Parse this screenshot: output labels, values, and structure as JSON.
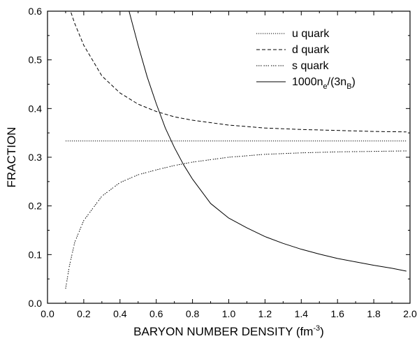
{
  "chart_data": {
    "type": "line",
    "title": "",
    "xlabel": "BARYON NUMBER DENSITY (fm",
    "xlabel_sup": "-3",
    "xlabel_close": ")",
    "ylabel": "FRACTION",
    "xlim": [
      0.0,
      2.0
    ],
    "ylim": [
      0.0,
      0.6
    ],
    "xticks": [
      "0.0",
      "0.2",
      "0.4",
      "0.6",
      "0.8",
      "1.0",
      "1.2",
      "1.4",
      "1.6",
      "1.8",
      "2.0"
    ],
    "yticks": [
      "0.0",
      "0.1",
      "0.2",
      "0.3",
      "0.4",
      "0.5",
      "0.6"
    ],
    "legend_position": "top-right",
    "grid": false,
    "series": [
      {
        "name": "u quark",
        "style": "dotted",
        "x": [
          0.1,
          0.3,
          0.5,
          0.7,
          0.9,
          1.1,
          1.3,
          1.5,
          1.7,
          1.98
        ],
        "y": [
          0.3333,
          0.3333,
          0.3333,
          0.3333,
          0.3333,
          0.3333,
          0.3333,
          0.3333,
          0.3333,
          0.3333
        ]
      },
      {
        "name": "d quark",
        "style": "dashed",
        "x": [
          0.1,
          0.15,
          0.2,
          0.3,
          0.4,
          0.5,
          0.6,
          0.7,
          0.8,
          1.0,
          1.2,
          1.4,
          1.6,
          1.8,
          1.98
        ],
        "y": [
          0.63,
          0.575,
          0.53,
          0.467,
          0.432,
          0.409,
          0.394,
          0.383,
          0.376,
          0.366,
          0.36,
          0.357,
          0.355,
          0.353,
          0.352
        ]
      },
      {
        "name": "s quark",
        "style": "dashdot",
        "x": [
          0.1,
          0.12,
          0.15,
          0.2,
          0.3,
          0.4,
          0.5,
          0.6,
          0.7,
          0.8,
          1.0,
          1.2,
          1.4,
          1.6,
          1.8,
          1.98
        ],
        "y": [
          0.03,
          0.075,
          0.125,
          0.17,
          0.22,
          0.248,
          0.264,
          0.274,
          0.283,
          0.29,
          0.3,
          0.306,
          0.309,
          0.311,
          0.312,
          0.313
        ]
      },
      {
        "name": "1000n",
        "name_sub1": "e",
        "name_mid": "/(3n",
        "name_sub2": "B",
        "name_end": ")",
        "style": "solid",
        "x": [
          0.45,
          0.5,
          0.55,
          0.6,
          0.65,
          0.7,
          0.75,
          0.8,
          0.9,
          1.0,
          1.1,
          1.2,
          1.3,
          1.4,
          1.5,
          1.6,
          1.7,
          1.8,
          1.9,
          1.98
        ],
        "y": [
          0.6,
          0.53,
          0.465,
          0.41,
          0.36,
          0.32,
          0.285,
          0.255,
          0.205,
          0.175,
          0.155,
          0.137,
          0.123,
          0.111,
          0.101,
          0.092,
          0.085,
          0.078,
          0.072,
          0.066
        ]
      }
    ]
  }
}
